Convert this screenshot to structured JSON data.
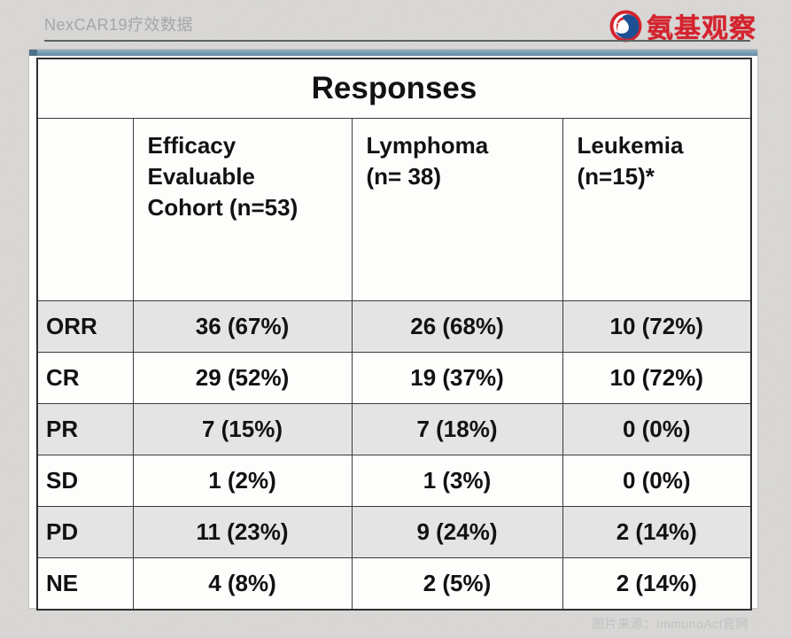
{
  "header": {
    "title": "NexCAR19疗效数据",
    "brand_name": "氨基观察",
    "brand_color": "#d4232e",
    "brand_icon": "swirl-drop-logo-icon"
  },
  "panel": {
    "accent_bar_color": "#6f95aa",
    "background_color": "#fdfdfc"
  },
  "table": {
    "title": "Responses",
    "title_color": "#1b2f6e",
    "border_color": "#3b3b3b",
    "alt_row_color": "#e4e4e4",
    "columns": [
      "",
      "Efficacy\nEvaluable\nCohort (n=53)",
      "Lymphoma\n(n= 38)",
      "Leukemia\n(n=15)*"
    ],
    "rows": [
      {
        "label": "ORR",
        "values": [
          "36 (67%)",
          "26 (68%)",
          "10 (72%)"
        ]
      },
      {
        "label": "CR",
        "values": [
          "29 (52%)",
          "19 (37%)",
          "10 (72%)"
        ]
      },
      {
        "label": "PR",
        "values": [
          "7 (15%)",
          "7 (18%)",
          "0 (0%)"
        ]
      },
      {
        "label": "SD",
        "values": [
          "1 (2%)",
          "1 (3%)",
          "0 (0%)"
        ]
      },
      {
        "label": "PD",
        "values": [
          "11 (23%)",
          "9 (24%)",
          "2 (14%)"
        ]
      },
      {
        "label": "NE",
        "values": [
          "4 (8%)",
          "2 (5%)",
          "2 (14%)"
        ]
      }
    ]
  },
  "footer": {
    "caption": "图片来源：ImmunoAct官网"
  },
  "chart_data": {
    "type": "table",
    "title": "Responses",
    "columns": [
      "",
      "Efficacy Evaluable Cohort (n=53)",
      "Lymphoma (n= 38)",
      "Leukemia (n=15)*"
    ],
    "rows": [
      [
        "ORR",
        "36 (67%)",
        "26 (68%)",
        "10 (72%)"
      ],
      [
        "CR",
        "29 (52%)",
        "19 (37%)",
        "10 (72%)"
      ],
      [
        "PR",
        "7 (15%)",
        "7 (18%)",
        "0 (0%)"
      ],
      [
        "SD",
        "1 (2%)",
        "1 (3%)",
        "0 (0%)"
      ],
      [
        "PD",
        "11 (23%)",
        "9 (24%)",
        "2 (14%)"
      ],
      [
        "NE",
        "4 (8%)",
        "2 (5%)",
        "2 (14%)"
      ]
    ]
  }
}
